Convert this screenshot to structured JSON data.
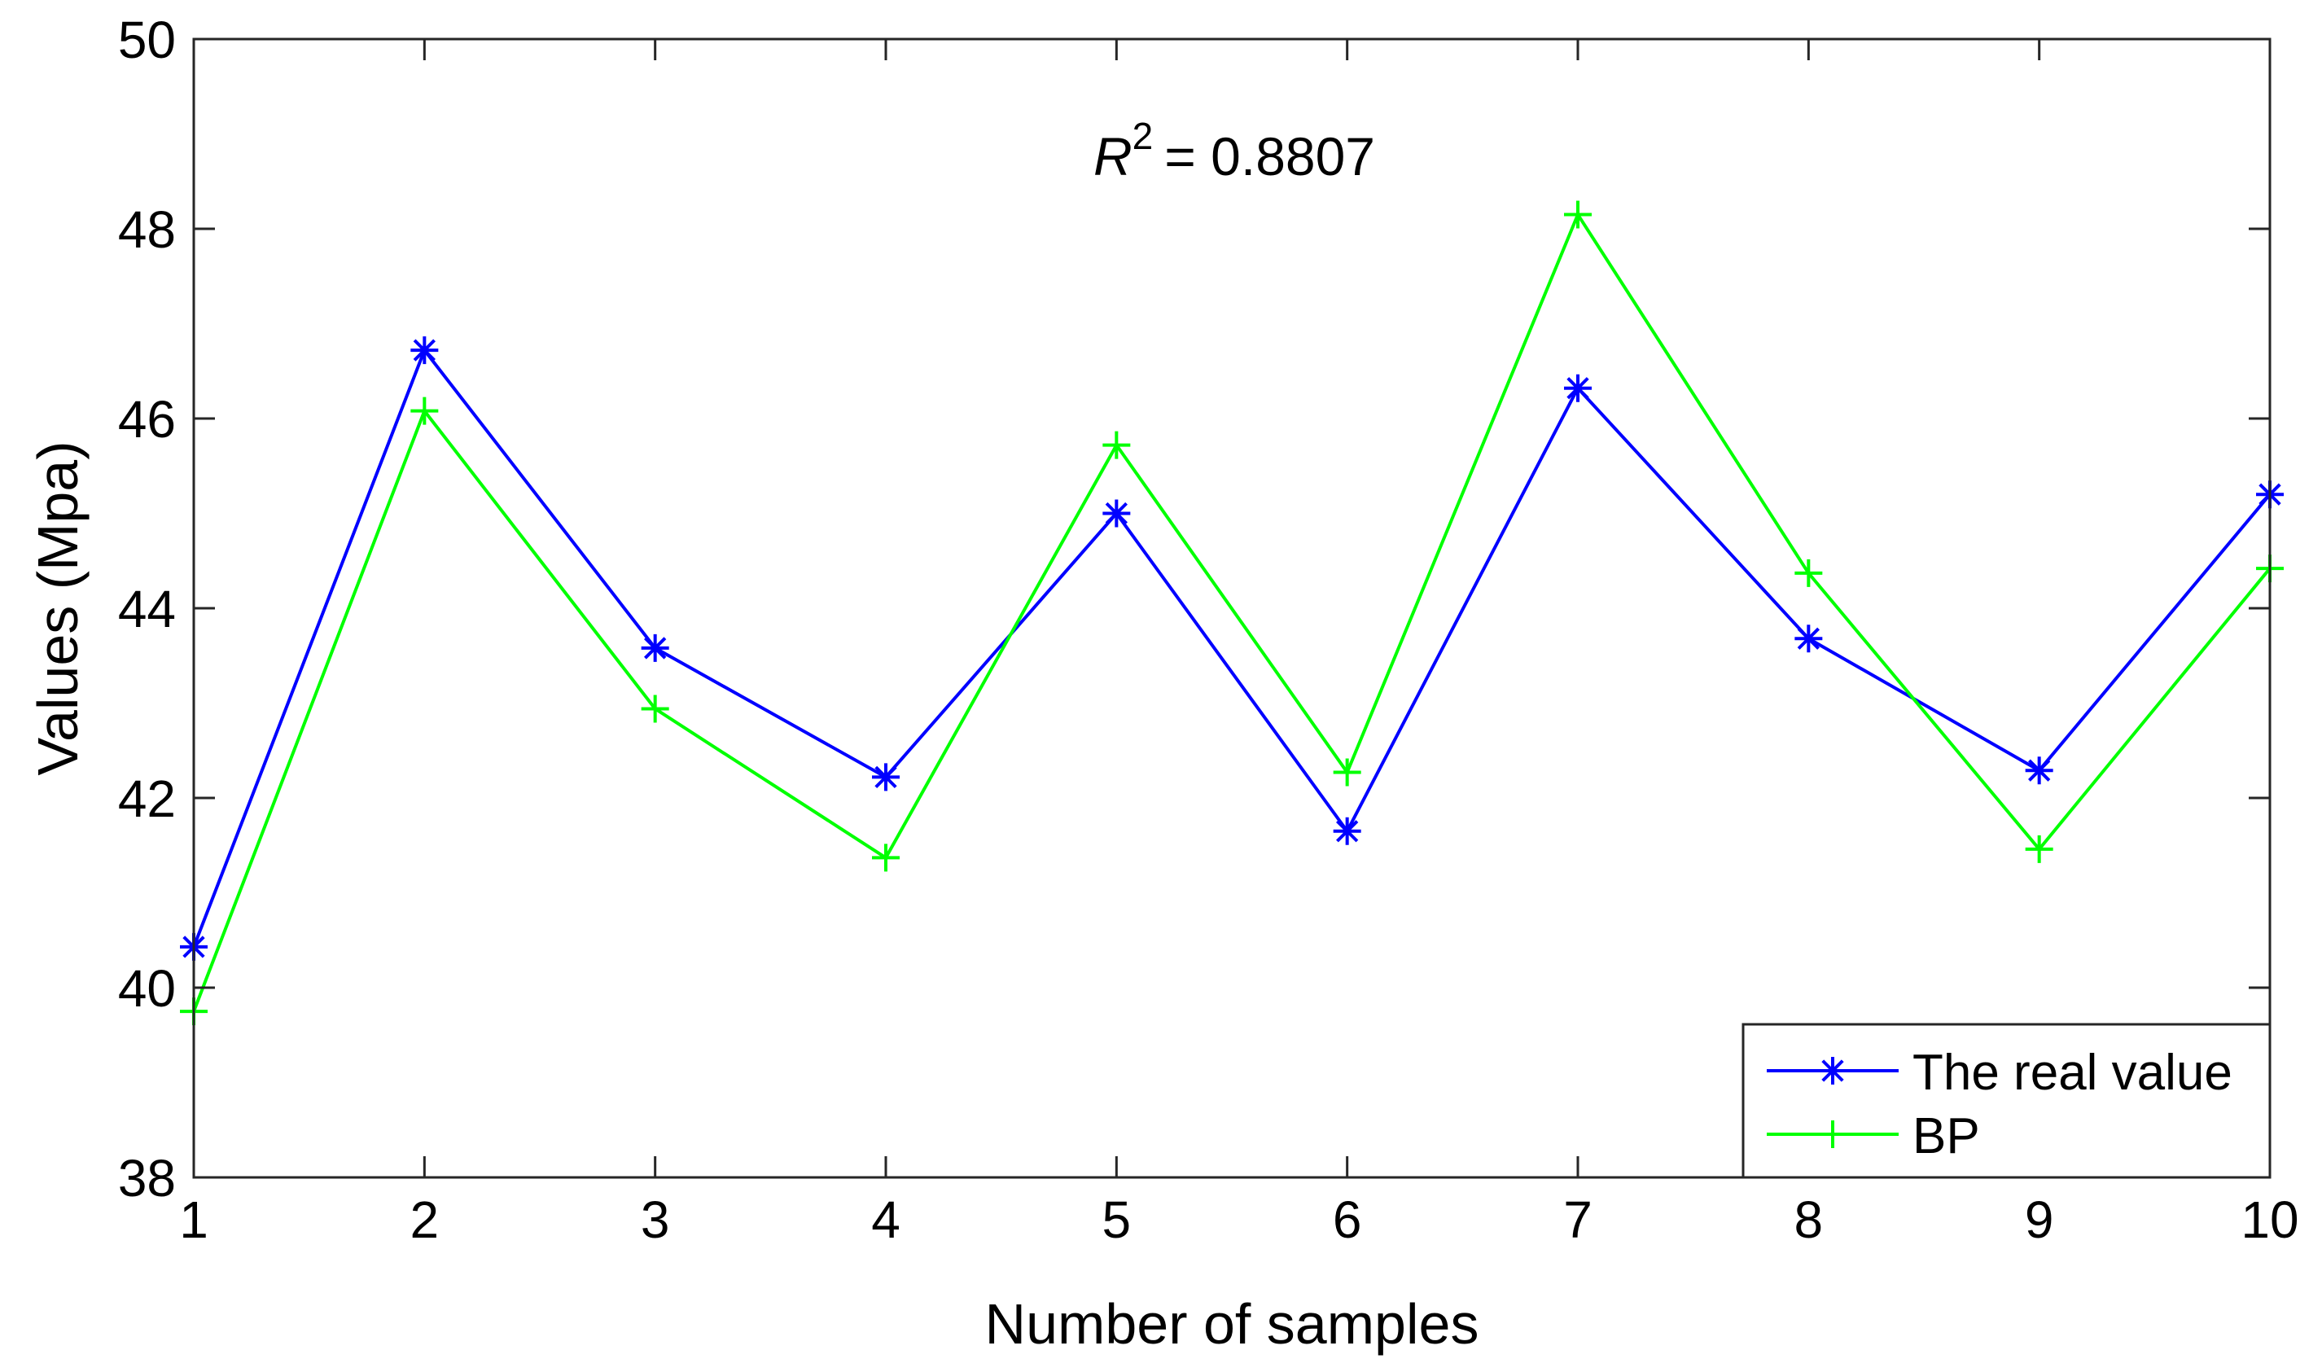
{
  "chart_data": {
    "type": "line",
    "title": "",
    "xlabel": "Number of samples",
    "ylabel": "Values (Mpa)",
    "xlim": [
      1,
      10
    ],
    "ylim": [
      38,
      50
    ],
    "x": [
      1,
      2,
      3,
      4,
      5,
      6,
      7,
      8,
      9,
      10
    ],
    "xticks": [
      "1",
      "2",
      "3",
      "4",
      "5",
      "6",
      "7",
      "8",
      "9",
      "10"
    ],
    "yticks": [
      "38",
      "40",
      "42",
      "44",
      "46",
      "48",
      "50"
    ],
    "grid": false,
    "legend_position": "bottom-right",
    "annotation": {
      "symbol": "R",
      "superscript": "2",
      "text": "= 0.8807"
    },
    "series": [
      {
        "name": "The real value",
        "color": "#0000ff",
        "marker": "asterisk",
        "values": [
          40.43,
          46.72,
          43.58,
          42.22,
          45.0,
          41.65,
          46.32,
          43.68,
          42.29,
          45.2
        ]
      },
      {
        "name": "BP",
        "color": "#00ff00",
        "marker": "plus",
        "values": [
          39.75,
          46.08,
          42.94,
          41.37,
          45.72,
          42.27,
          48.15,
          44.37,
          41.46,
          44.42
        ]
      }
    ]
  }
}
